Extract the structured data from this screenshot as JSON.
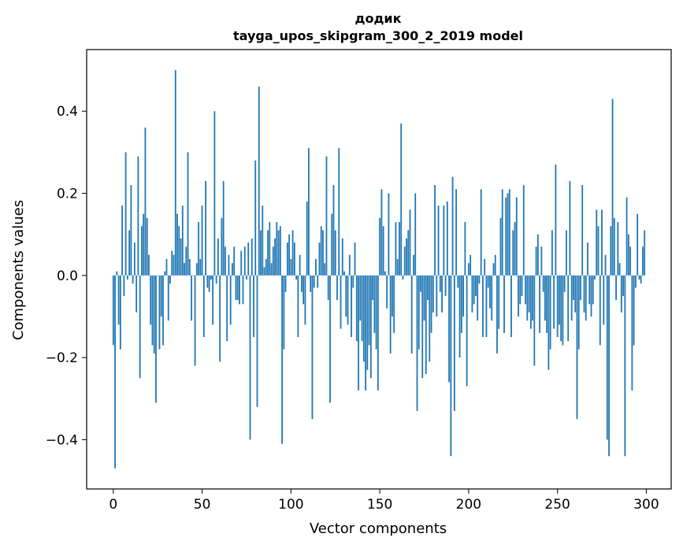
{
  "chart_data": {
    "type": "bar",
    "title_line1": "додик",
    "title_line2": "tayga_upos_skipgram_300_2_2019 model",
    "xlabel": "Vector components",
    "ylabel": "Components values",
    "xlim": [
      -15,
      314
    ],
    "ylim": [
      -0.52,
      0.55
    ],
    "xticks": [
      0,
      50,
      100,
      150,
      200,
      250,
      300
    ],
    "xtick_labels": [
      "0",
      "50",
      "100",
      "150",
      "200",
      "250",
      "300"
    ],
    "yticks": [
      -0.4,
      -0.2,
      0.0,
      0.2,
      0.4
    ],
    "ytick_labels": [
      "−0.4",
      "−0.2",
      "0.0",
      "0.2",
      "0.4"
    ],
    "bar_color": "#1f77b4",
    "grid": false,
    "x_start": 0,
    "values": [
      -0.17,
      -0.47,
      0.01,
      -0.12,
      -0.18,
      0.17,
      -0.05,
      0.3,
      -0.01,
      0.11,
      0.22,
      -0.02,
      0.08,
      -0.09,
      0.29,
      -0.25,
      0.12,
      0.15,
      0.36,
      0.14,
      0.05,
      -0.12,
      -0.17,
      -0.19,
      -0.31,
      0.0,
      -0.18,
      -0.1,
      -0.17,
      0.01,
      0.04,
      -0.11,
      -0.02,
      0.06,
      0.05,
      0.5,
      0.15,
      0.12,
      0.09,
      0.17,
      0.03,
      0.07,
      0.3,
      0.04,
      -0.11,
      0.0,
      -0.22,
      0.03,
      0.13,
      0.04,
      0.17,
      -0.15,
      0.23,
      -0.03,
      -0.04,
      -0.01,
      -0.12,
      0.4,
      -0.02,
      0.09,
      -0.21,
      0.14,
      0.23,
      0.07,
      -0.16,
      0.05,
      -0.12,
      0.03,
      0.07,
      -0.06,
      -0.06,
      -0.07,
      0.06,
      -0.07,
      0.07,
      -0.01,
      0.08,
      -0.4,
      0.09,
      -0.15,
      0.28,
      -0.32,
      0.46,
      0.11,
      0.17,
      0.02,
      0.04,
      0.11,
      0.13,
      0.03,
      0.07,
      0.09,
      0.13,
      0.11,
      0.12,
      -0.41,
      -0.18,
      -0.04,
      0.08,
      0.1,
      0.04,
      0.11,
      0.08,
      -0.01,
      -0.15,
      0.05,
      -0.04,
      -0.07,
      -0.12,
      0.18,
      0.31,
      -0.04,
      -0.35,
      -0.03,
      0.04,
      -0.03,
      0.08,
      0.12,
      0.11,
      0.03,
      0.29,
      -0.06,
      -0.31,
      0.15,
      0.22,
      0.11,
      -0.06,
      0.31,
      -0.13,
      0.09,
      0.01,
      -0.1,
      -0.12,
      0.05,
      -0.15,
      -0.03,
      0.08,
      -0.16,
      -0.28,
      -0.11,
      -0.16,
      -0.21,
      -0.28,
      -0.23,
      -0.17,
      -0.25,
      -0.06,
      -0.14,
      -0.18,
      -0.28,
      0.14,
      0.21,
      0.12,
      0.01,
      -0.08,
      0.2,
      -0.19,
      -0.1,
      -0.14,
      0.13,
      0.04,
      0.13,
      0.37,
      -0.01,
      0.07,
      0.09,
      0.11,
      0.16,
      -0.19,
      0.05,
      0.2,
      -0.33,
      -0.18,
      -0.04,
      -0.25,
      -0.11,
      -0.24,
      -0.06,
      -0.21,
      -0.14,
      -0.09,
      0.22,
      -0.1,
      0.17,
      -0.04,
      -0.09,
      0.17,
      -0.05,
      0.18,
      -0.26,
      -0.44,
      0.24,
      -0.33,
      0.21,
      -0.03,
      -0.2,
      -0.14,
      -0.1,
      0.13,
      -0.27,
      0.03,
      0.05,
      -0.09,
      -0.07,
      -0.05,
      -0.11,
      -0.02,
      0.21,
      -0.15,
      0.04,
      -0.15,
      -0.03,
      -0.08,
      -0.11,
      0.03,
      0.05,
      -0.19,
      -0.13,
      0.14,
      0.21,
      -0.14,
      0.19,
      0.2,
      0.21,
      -0.15,
      0.11,
      0.13,
      0.19,
      -0.1,
      -0.07,
      -0.05,
      0.22,
      -0.07,
      -0.11,
      -0.09,
      -0.13,
      -0.11,
      -0.22,
      0.07,
      0.1,
      -0.14,
      0.07,
      -0.04,
      -0.11,
      -0.14,
      -0.23,
      -0.18,
      0.11,
      -0.13,
      0.27,
      -0.15,
      -0.12,
      -0.16,
      -0.17,
      -0.04,
      0.11,
      -0.16,
      0.23,
      -0.11,
      -0.06,
      -0.09,
      -0.35,
      -0.18,
      -0.06,
      0.22,
      -0.09,
      -0.11,
      0.08,
      -0.07,
      -0.1,
      -0.07,
      -0.01,
      0.16,
      0.12,
      -0.17,
      0.16,
      -0.12,
      0.05,
      -0.4,
      -0.44,
      0.12,
      0.43,
      0.14,
      -0.06,
      0.13,
      0.03,
      -0.09,
      -0.05,
      -0.44,
      0.19,
      0.1,
      0.07,
      -0.28,
      -0.17,
      -0.03,
      0.15,
      -0.01,
      -0.02,
      0.07,
      0.11
    ]
  }
}
